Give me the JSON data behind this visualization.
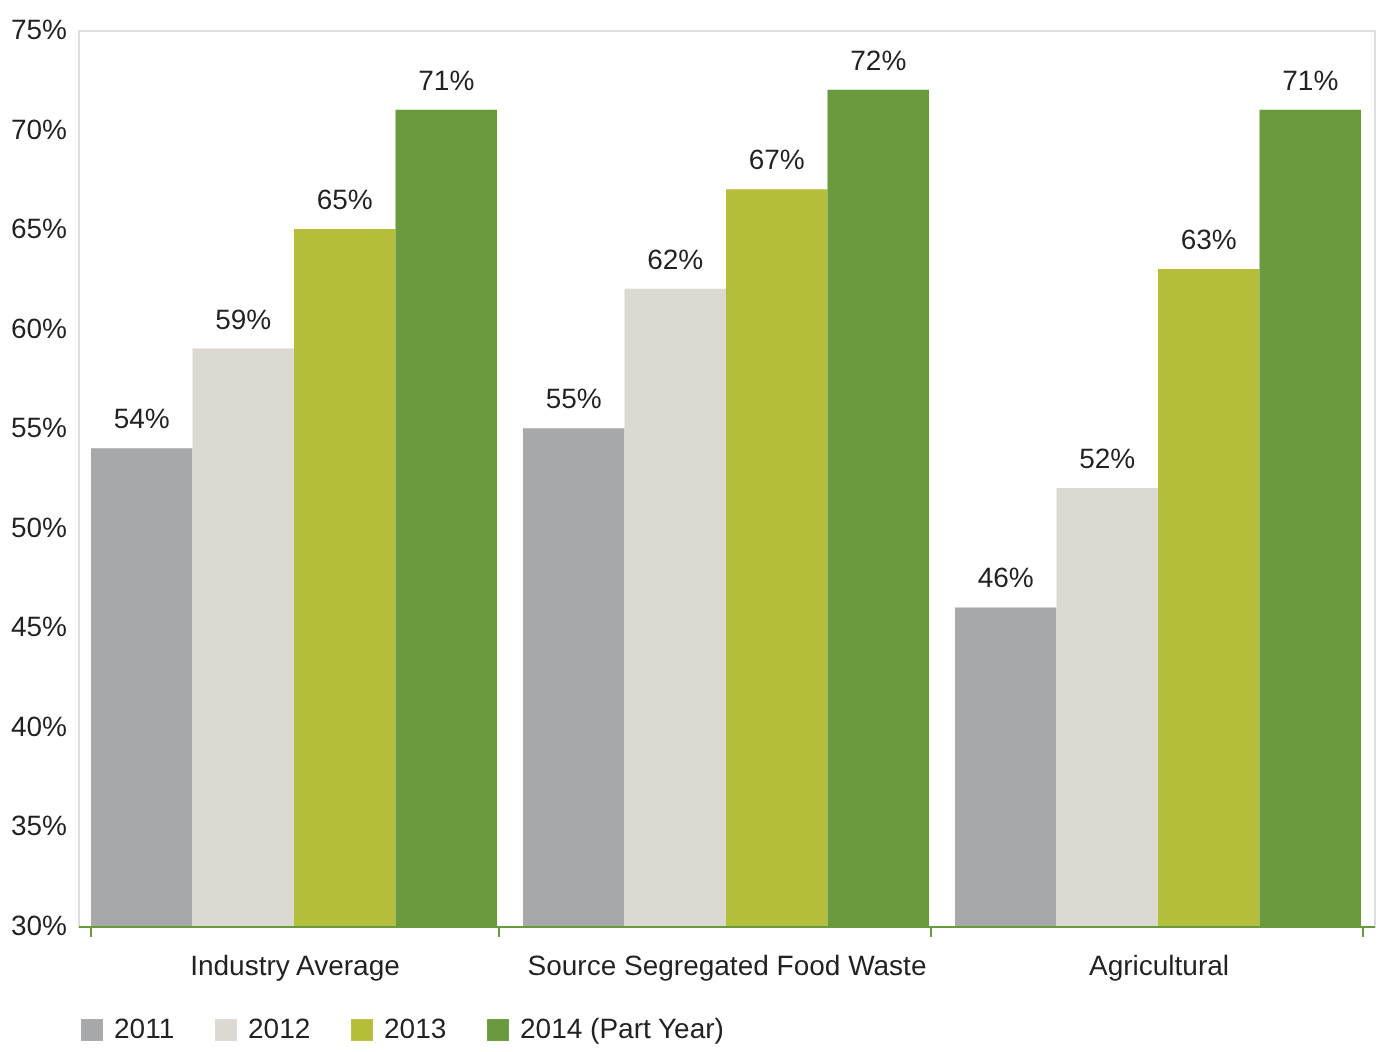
{
  "chart_data": {
    "type": "bar",
    "categories": [
      "Industry Average",
      "Source Segregated Food Waste",
      "Agricultural"
    ],
    "series": [
      {
        "name": "2011",
        "color": "#a6a8a9",
        "values": [
          54,
          55,
          46
        ],
        "value_labels": [
          "54%",
          "55%",
          "46%"
        ]
      },
      {
        "name": "2012",
        "color": "#dcd8d2",
        "values": [
          59,
          62,
          52
        ],
        "value_labels": [
          "59%",
          "62%",
          "52%"
        ]
      },
      {
        "name": "2013",
        "color": "#b5be3a",
        "values": [
          65,
          67,
          63
        ],
        "value_labels": [
          "65%",
          "67%",
          "63%"
        ]
      },
      {
        "name": "2014 (Part Year)",
        "color": "#6a9a3e",
        "values": [
          71,
          72,
          71
        ],
        "value_labels": [
          "71%",
          "72%",
          "71%"
        ]
      }
    ],
    "ylim": [
      30,
      75
    ],
    "yticks": [
      {
        "value": 30,
        "label": "30%"
      },
      {
        "value": 35,
        "label": "35%"
      },
      {
        "value": 40,
        "label": "40%"
      },
      {
        "value": 45,
        "label": "45%"
      },
      {
        "value": 50,
        "label": "50%"
      },
      {
        "value": 55,
        "label": "55%"
      },
      {
        "value": 60,
        "label": "60%"
      },
      {
        "value": 65,
        "label": "65%"
      },
      {
        "value": 70,
        "label": "70%"
      },
      {
        "value": 75,
        "label": "75%"
      }
    ],
    "grid": false,
    "legend": "bottom"
  }
}
